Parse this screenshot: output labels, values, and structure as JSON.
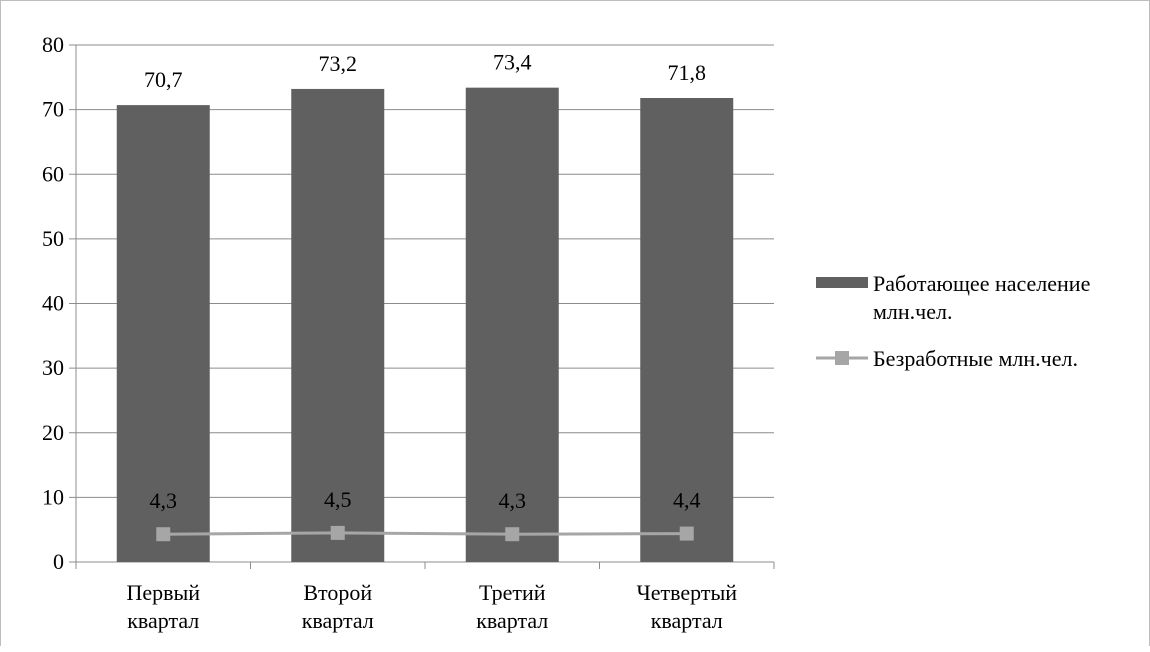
{
  "chart_data": {
    "type": "bar",
    "categories": [
      [
        "Первый",
        "квартал"
      ],
      [
        "Второй",
        "квартал"
      ],
      [
        "Третий",
        "квартал"
      ],
      [
        "Четвертый",
        "квартал"
      ]
    ],
    "series": [
      {
        "name": "Работающее население млн.чел.",
        "name_lines": [
          "Работающее население",
          "млн.чел."
        ],
        "render": "bar",
        "color": "#606060",
        "values": [
          70.7,
          73.2,
          73.4,
          71.8
        ],
        "labels": [
          "70,7",
          "73,2",
          "73,4",
          "71,8"
        ]
      },
      {
        "name": "Безработные млн.чел.",
        "name_lines": [
          "Безработные млн.чел."
        ],
        "render": "line",
        "color": "#a6a6a6",
        "values": [
          4.3,
          4.5,
          4.3,
          4.4
        ],
        "labels": [
          "4,3",
          "4,5",
          "4,3",
          "4,4"
        ]
      }
    ],
    "y_ticks": [
      0,
      10,
      20,
      30,
      40,
      50,
      60,
      70,
      80
    ],
    "ylim": [
      0,
      80
    ],
    "grid": true,
    "legend_position": "right"
  }
}
